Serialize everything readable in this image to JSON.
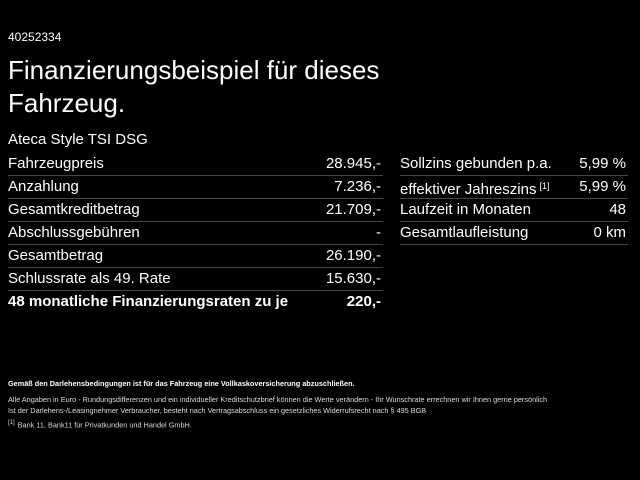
{
  "id": "40252334",
  "title_lines": [
    "Finanzierungsbeispiel für dieses",
    "Fahrzeug."
  ],
  "model": "Ateca Style TSI DSG",
  "left_table": {
    "rows": [
      [
        "Fahrzeugpreis",
        "28.945,-"
      ],
      [
        "Anzahlung",
        "7.236,-"
      ],
      [
        "Gesamtkreditbetrag",
        "21.709,-"
      ],
      [
        "Abschlussgebühren",
        "-"
      ],
      [
        "Gesamtbetrag",
        "26.190,-"
      ],
      [
        "Schlussrate als 49. Rate",
        "15.630,-"
      ]
    ],
    "total": [
      "48 monatliche Finanzierungsraten zu je",
      "220,-"
    ]
  },
  "right_table": {
    "rows": [
      [
        "Sollzins gebunden p.a.",
        "5,99 %"
      ],
      [
        "effektiver Jahreszins",
        "[1]",
        "5,99 %"
      ],
      [
        "Laufzeit in Monaten",
        "48"
      ],
      [
        "Gesamtlaufleistung",
        "0 km"
      ]
    ]
  },
  "notes": {
    "insurance": "Gemäß den Darlehensbedingungen ist für das Fahrzeug eine Vollkaskoversicherung abzuschließen.",
    "disclaimer_lines": [
      "Alle Angaben in Euro - Rundungsdifferenzen und ein individueller Kreditschutzbrief können die Werte verändern - Ihr Wunschrate errechnen wir Ihnen gerne persönlich",
      "Ist der Darlehens-/Leasingnehmer Verbraucher, besteht nach Vertragsabschluss ein gesetzliches Widerrufsrecht nach § 495 BGB"
    ],
    "footnote": {
      "marker": "[1]",
      "text": "Bank 11, Bank11 für Privatkunden und Handel GmbH."
    }
  }
}
